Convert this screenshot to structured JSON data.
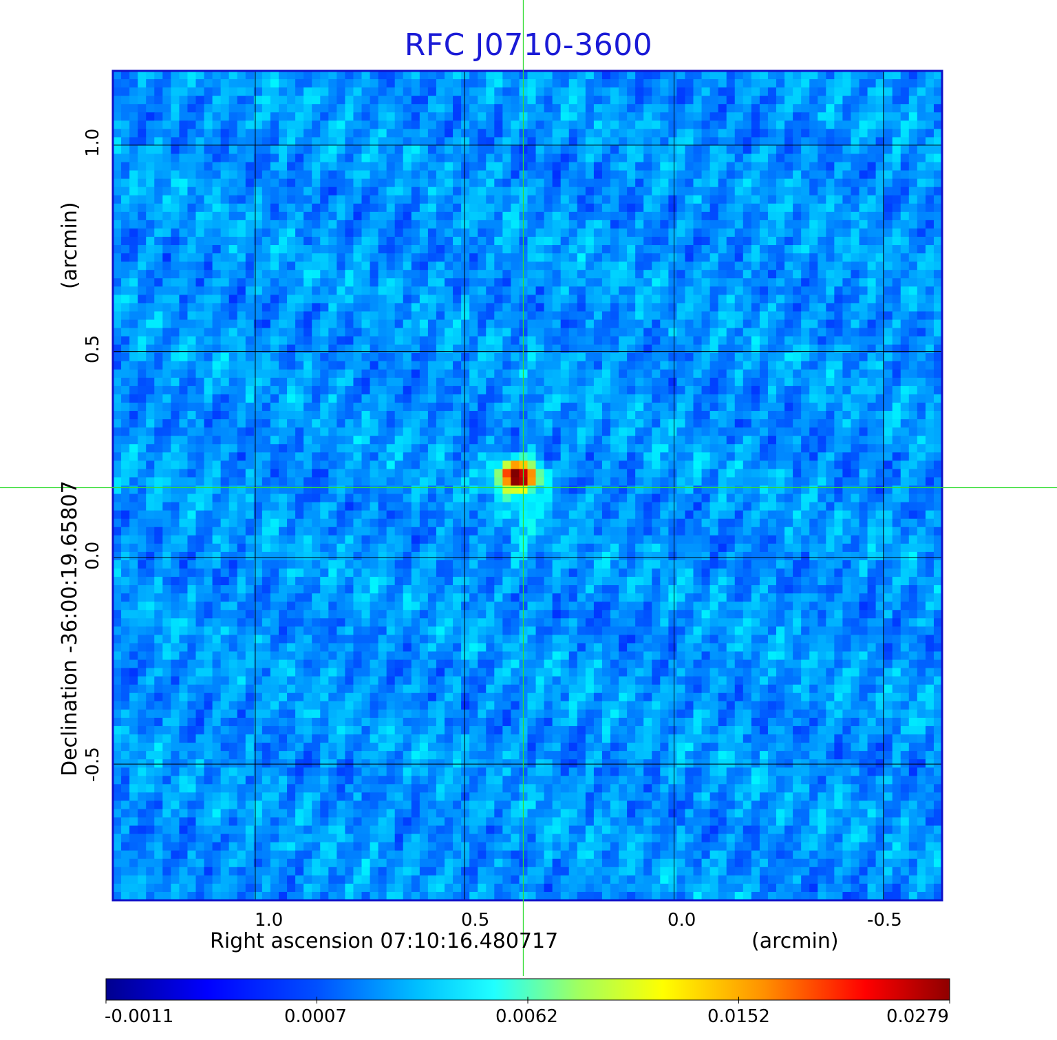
{
  "chart_data": {
    "type": "heatmap",
    "title": "RFC J0710-3600",
    "xlabel": "Right ascension  07:10:16.480717",
    "xunit": "(arcmin)",
    "ylabel": "Declination  -36:00:19.65807",
    "yunit": "(arcmin)",
    "x_ticks": [
      "1.0",
      "0.5",
      "0.0",
      "-0.5"
    ],
    "y_ticks": [
      "1.0",
      "0.5",
      "0.0",
      "-0.5"
    ],
    "xlim": [
      1.34,
      -0.64
    ],
    "ylim": [
      -0.83,
      1.18
    ],
    "grid": true,
    "crosshair": {
      "x": 0.36,
      "y": 0.17
    },
    "source_peak": {
      "x": 0.37,
      "y": 0.2,
      "value": 0.0279
    },
    "colorbar": {
      "ticks": [
        "-0.0011",
        "0.0007",
        "0.0062",
        "0.0152",
        "0.0279"
      ],
      "min": -0.0011,
      "max": 0.0279
    },
    "colors": {
      "title": "#1a1ad6",
      "frame": "#1010c8",
      "crosshair": "#33dd33",
      "grid": "#000000"
    }
  }
}
